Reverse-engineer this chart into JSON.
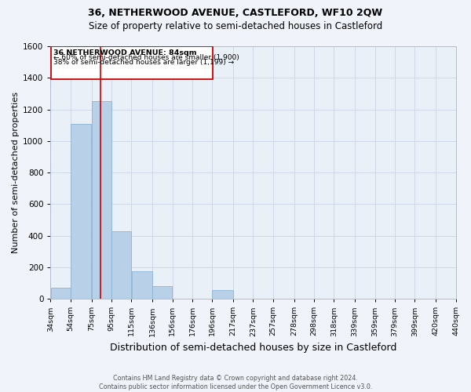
{
  "title": "36, NETHERWOOD AVENUE, CASTLEFORD, WF10 2QW",
  "subtitle": "Size of property relative to semi-detached houses in Castleford",
  "xlabel": "Distribution of semi-detached houses by size in Castleford",
  "ylabel": "Number of semi-detached properties",
  "footer_line1": "Contains HM Land Registry data © Crown copyright and database right 2024.",
  "footer_line2": "Contains public sector information licensed under the Open Government Licence v3.0.",
  "annotation_title": "36 NETHERWOOD AVENUE: 84sqm",
  "annotation_line2": "← 60% of semi-detached houses are smaller (1,900)",
  "annotation_line3": "38% of semi-detached houses are larger (1,199) →",
  "bar_edges": [
    34,
    54,
    75,
    95,
    115,
    136,
    156,
    176,
    196,
    217,
    237,
    257,
    278,
    298,
    318,
    339,
    359,
    379,
    399,
    420,
    440
  ],
  "bar_heights": [
    70,
    1110,
    1250,
    430,
    175,
    80,
    0,
    0,
    55,
    0,
    0,
    0,
    0,
    0,
    0,
    0,
    0,
    0,
    0,
    0
  ],
  "bar_color": "#b8d0e8",
  "bar_edgecolor": "#8ab4d4",
  "vline_x": 84,
  "vline_color": "#cc0000",
  "annotation_box_color": "#cc0000",
  "ylim": [
    0,
    1600
  ],
  "yticks": [
    0,
    200,
    400,
    600,
    800,
    1000,
    1200,
    1400,
    1600
  ],
  "grid_color": "#d0d8e8",
  "bg_color": "#eaf0f8",
  "fig_bg_color": "#f0f4fa",
  "title_fontsize": 9,
  "subtitle_fontsize": 8.5,
  "xlabel_fontsize": 9,
  "ylabel_fontsize": 8
}
